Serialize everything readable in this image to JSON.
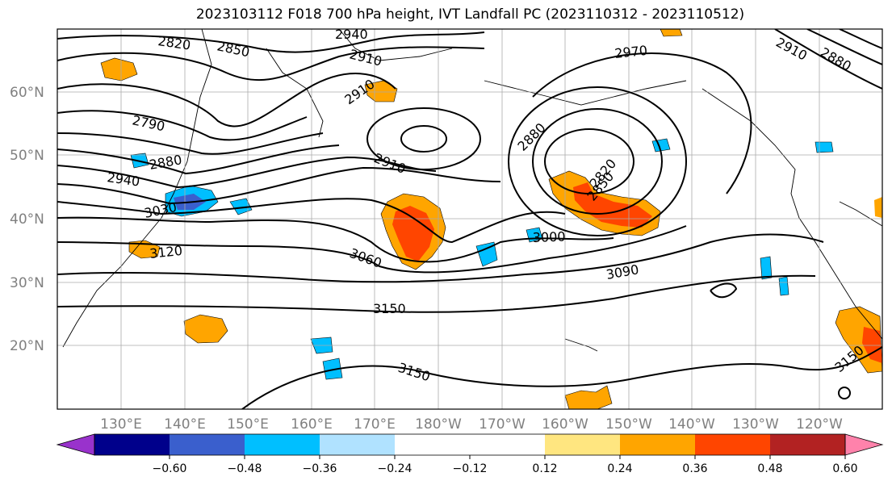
{
  "title": "2023103112 F018 700 hPa height, IVT Landfall PC (2023110312 - 2023110512)",
  "map": {
    "lat_labels": [
      "60°N",
      "50°N",
      "40°N",
      "30°N",
      "20°N"
    ],
    "lon_labels": [
      "130°E",
      "140°E",
      "150°E",
      "160°E",
      "170°E",
      "180°W",
      "170°W",
      "160°W",
      "150°W",
      "140°W",
      "130°W",
      "120°W"
    ],
    "contour_labels": [
      "2820",
      "2850",
      "2940",
      "2910",
      "2970",
      "2910",
      "2880",
      "2790",
      "2910",
      "2880",
      "2880",
      "2940",
      "2820",
      "2850",
      "2910",
      "3030",
      "3000",
      "3060",
      "3120",
      "3090",
      "3150",
      "3150",
      "3150"
    ]
  },
  "colorbar": {
    "colors": [
      "#9932cc",
      "#00008b",
      "#3a5fcd",
      "#00bfff",
      "#b0e2ff",
      "#ffffff",
      "#ffffff",
      "#ffe680",
      "#ffa500",
      "#ff4500",
      "#b22222",
      "#ff82ab"
    ],
    "tick_labels": [
      "−0.60",
      "−0.48",
      "−0.36",
      "−0.24",
      "−0.12",
      "0.12",
      "0.24",
      "0.36",
      "0.48",
      "0.60"
    ]
  }
}
